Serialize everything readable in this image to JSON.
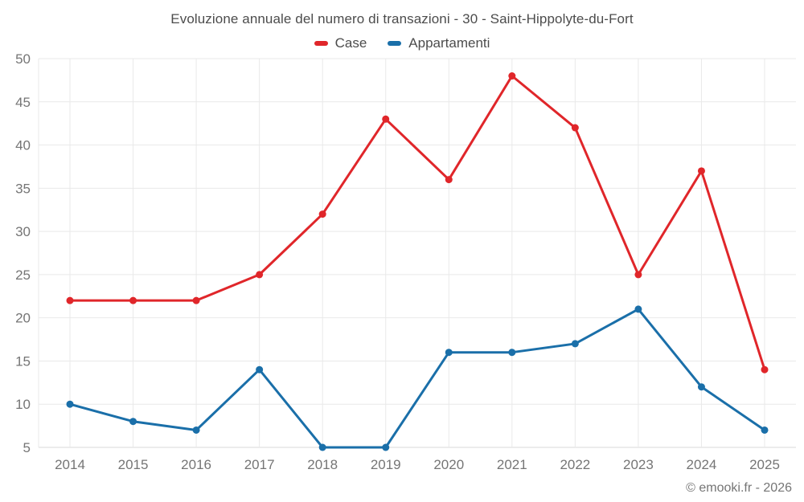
{
  "page": {
    "title": "Evoluzione annuale del numero di transazioni - 30 - Saint-Hippolyte-du-Fort",
    "footer_credit": "© emooki.fr - 2026"
  },
  "legend": {
    "items": [
      {
        "label": "Case",
        "color": "#e0262a"
      },
      {
        "label": "Appartamenti",
        "color": "#1a6fa9"
      }
    ]
  },
  "chart_data": {
    "type": "line",
    "title": "Evoluzione annuale del numero di transazioni - 30 - Saint-Hippolyte-du-Fort",
    "categories": [
      "2014",
      "2015",
      "2016",
      "2017",
      "2018",
      "2019",
      "2020",
      "2021",
      "2022",
      "2023",
      "2024",
      "2025"
    ],
    "series": [
      {
        "name": "Case",
        "color": "#e0262a",
        "values": [
          22,
          22,
          22,
          25,
          32,
          43,
          36,
          48,
          42,
          25,
          37,
          14
        ]
      },
      {
        "name": "Appartamenti",
        "color": "#1a6fa9",
        "values": [
          10,
          8,
          7,
          14,
          5,
          5,
          16,
          16,
          17,
          21,
          12,
          7
        ]
      }
    ],
    "xlabel": "",
    "ylabel": "",
    "ylim": [
      5,
      50
    ],
    "y_ticks": [
      5,
      10,
      15,
      20,
      25,
      30,
      35,
      40,
      45,
      50
    ],
    "grid": true,
    "legend_position": "top",
    "styles": {
      "grid_color": "#e9e9e9",
      "axis_color": "#d9d9d9",
      "tick_label_color": "#757575",
      "tick_font_size": 17,
      "line_width": 3,
      "point_radius": 4.5
    }
  }
}
